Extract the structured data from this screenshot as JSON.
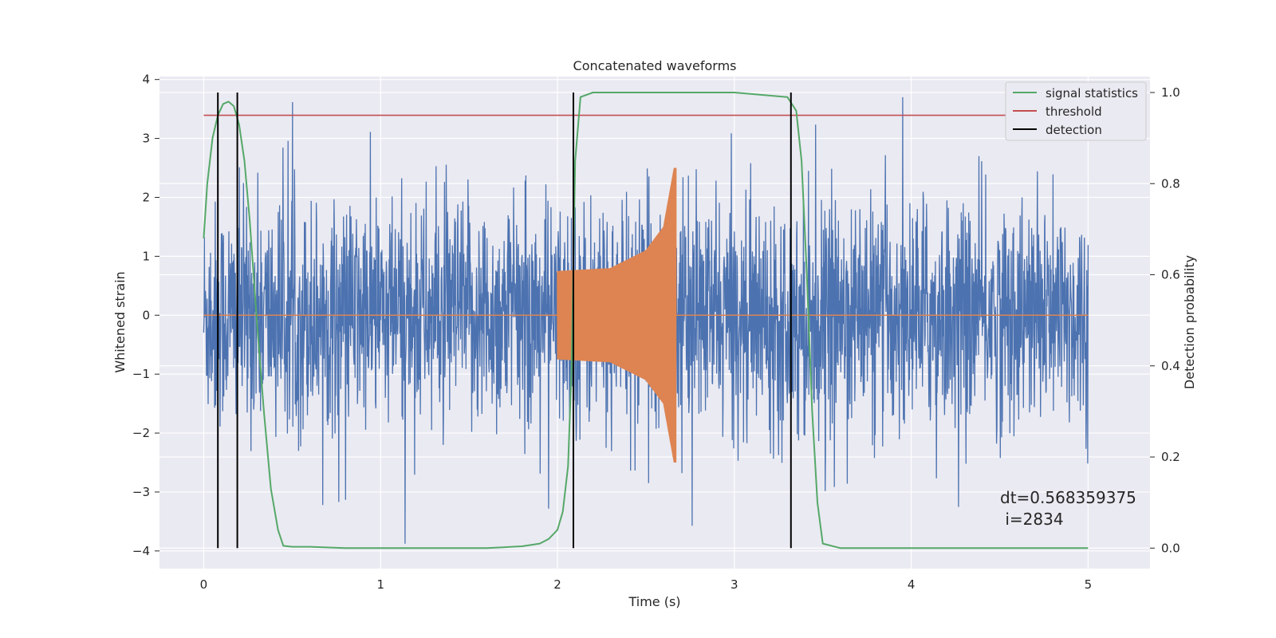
{
  "chart_data": {
    "type": "line",
    "title": "Concatenated waveforms",
    "xlabel": "Time (s)",
    "ylabel": "Whitened strain",
    "ylabel_right": "Detection probability",
    "xlim": [
      -0.25,
      5.35
    ],
    "ylim": [
      -4.3,
      4.05
    ],
    "ylim_right": [
      -0.045,
      1.035
    ],
    "x_ticks": [
      0,
      1,
      2,
      3,
      4,
      5
    ],
    "y_ticks": [
      -4,
      -3,
      -2,
      -1,
      0,
      1,
      2,
      3,
      4
    ],
    "y_ticks_right": [
      0.0,
      0.2,
      0.4,
      0.6,
      0.8,
      1.0
    ],
    "x_tick_labels": [
      "0",
      "1",
      "2",
      "3",
      "4",
      "5"
    ],
    "y_tick_labels": [
      "−4",
      "−3",
      "−2",
      "−1",
      "0",
      "1",
      "2",
      "3",
      "4"
    ],
    "y_tick_labels_right": [
      "0.0",
      "0.2",
      "0.4",
      "0.6",
      "0.8",
      "1.0"
    ],
    "grid": true,
    "legend_position": "top-right",
    "legend": [
      {
        "label": "signal statistics",
        "color": "#55a868"
      },
      {
        "label": "threshold",
        "color": "#c44e52"
      },
      {
        "label": "detection",
        "color": "#000000"
      }
    ],
    "series": [
      {
        "role": "whitened-strain-noise",
        "axis": "left",
        "color": "#4c72b0",
        "x_range": [
          0,
          5
        ],
        "typical_amplitude": 1.0,
        "peak_range": [
          -3.9,
          3.7
        ]
      },
      {
        "role": "injected-chirp",
        "axis": "left",
        "color": "#dd8452",
        "x_range": [
          2.0,
          2.67
        ],
        "baseline": 0,
        "envelope": [
          {
            "x": 2.0,
            "amp": 0.75
          },
          {
            "x": 2.3,
            "amp": 0.8
          },
          {
            "x": 2.5,
            "amp": 1.1
          },
          {
            "x": 2.6,
            "amp": 1.5
          },
          {
            "x": 2.66,
            "amp": 2.5
          }
        ]
      },
      {
        "name": "signal statistics",
        "axis": "right",
        "color": "#55a868",
        "x": [
          0.0,
          0.02,
          0.05,
          0.08,
          0.11,
          0.14,
          0.17,
          0.2,
          0.23,
          0.26,
          0.3,
          0.34,
          0.38,
          0.42,
          0.45,
          0.5,
          0.6,
          0.8,
          1.2,
          1.6,
          1.8,
          1.9,
          1.95,
          2.0,
          2.03,
          2.06,
          2.08,
          2.1,
          2.13,
          2.2,
          2.5,
          3.0,
          3.3,
          3.35,
          3.38,
          3.41,
          3.44,
          3.47,
          3.5,
          3.6,
          4.0,
          4.5,
          5.0
        ],
        "y": [
          0.68,
          0.8,
          0.9,
          0.95,
          0.975,
          0.98,
          0.97,
          0.93,
          0.85,
          0.72,
          0.5,
          0.3,
          0.13,
          0.04,
          0.005,
          0.003,
          0.003,
          0.0,
          0.0,
          0.0,
          0.004,
          0.01,
          0.02,
          0.04,
          0.08,
          0.18,
          0.4,
          0.85,
          0.99,
          1.0,
          1.0,
          1.0,
          0.99,
          0.96,
          0.85,
          0.6,
          0.3,
          0.1,
          0.01,
          0.0,
          0.0,
          0.0,
          0.0
        ]
      },
      {
        "name": "threshold",
        "axis": "right",
        "color": "#c44e52",
        "x": [
          0,
          5
        ],
        "y": [
          0.95,
          0.95
        ]
      }
    ],
    "detections": {
      "label": "detection",
      "color": "#000000",
      "x": [
        0.08,
        0.19,
        2.09,
        3.32
      ],
      "y_range": [
        0.0,
        1.0
      ]
    },
    "annotation": {
      "line1": "dt=0.568359375",
      "line2": " i=2834"
    }
  }
}
